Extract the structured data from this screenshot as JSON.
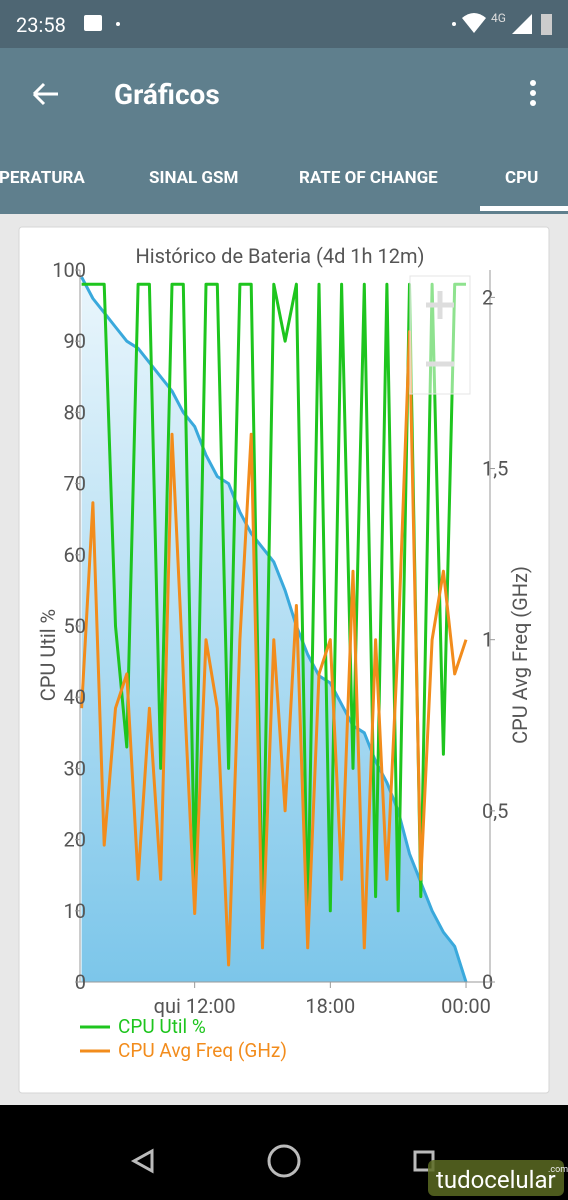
{
  "status_bar": {
    "time": "23:58",
    "network": "4G"
  },
  "app_bar": {
    "title": "Gráficos"
  },
  "tabs": [
    "IPERATURA",
    "SINAL GSM",
    "RATE OF CHANGE",
    "CPU"
  ],
  "watermark": {
    "brand": "tudocelular",
    "suffix": ".com"
  },
  "chart_data": {
    "type": "line",
    "title": "Histórico de Bateria (4d 1h 12m)",
    "y_label": "CPU Util %",
    "y2_label": "CPU Avg Freq (GHz)",
    "x": [
      7,
      7.5,
      8,
      8.5,
      9,
      9.5,
      10,
      10.5,
      11,
      11.5,
      12,
      12.5,
      13,
      13.5,
      14,
      14.5,
      15,
      15.5,
      16,
      16.5,
      17,
      17.5,
      18,
      18.5,
      19,
      19.5,
      20,
      20.5,
      21,
      21.5,
      22,
      22.5,
      23,
      23.5,
      24
    ],
    "xlim": [
      6.93,
      25.06
    ],
    "xticks": [
      {
        "value": 12,
        "label": "qui 12:00"
      },
      {
        "value": 18,
        "label": "18:00"
      },
      {
        "value": 24,
        "label": "00:00"
      }
    ],
    "ylim": [
      0,
      100
    ],
    "yticks": [
      0,
      10,
      20,
      30,
      40,
      50,
      60,
      70,
      80,
      90,
      100
    ],
    "y2lim": [
      0,
      2.08
    ],
    "y2ticks": [
      0,
      {
        "value": 0.5,
        "label": "0,5"
      },
      1,
      {
        "value": 1.5,
        "label": "1,5"
      },
      2
    ],
    "legend": "bottom-left",
    "series": [
      {
        "color": "#3aa9dc",
        "fill": true,
        "values": [
          99,
          96,
          94,
          92,
          90,
          89,
          87,
          85,
          83,
          80,
          78,
          74,
          71,
          70,
          66,
          63,
          61,
          59,
          55,
          50,
          46,
          43,
          42,
          39,
          36,
          35,
          31,
          28,
          24,
          18,
          14,
          10,
          7,
          5,
          0
        ]
      },
      {
        "name": "CPU Util %",
        "color": "#1ec51e",
        "values": [
          98,
          98,
          98,
          50,
          33,
          98,
          98,
          30,
          98,
          98,
          14,
          98,
          98,
          30,
          98,
          98,
          8,
          98,
          90,
          98,
          8,
          98,
          10,
          98,
          30,
          98,
          12,
          98,
          10,
          98,
          12,
          98,
          32,
          98,
          98
        ]
      },
      {
        "name": "CPU Avg Freq (GHz)",
        "color": "#f28c1c",
        "axis": "y2",
        "values": [
          0.8,
          1.4,
          0.4,
          0.8,
          0.9,
          0.3,
          0.8,
          0.3,
          1.6,
          0.9,
          0.2,
          1.0,
          0.8,
          0.05,
          1.0,
          1.6,
          0.1,
          1.0,
          0.5,
          1.1,
          0.1,
          0.9,
          1.0,
          0.3,
          1.2,
          0.1,
          1.0,
          0.3,
          1.0,
          1.9,
          0.3,
          1.0,
          1.2,
          0.9,
          1.0
        ]
      }
    ]
  }
}
